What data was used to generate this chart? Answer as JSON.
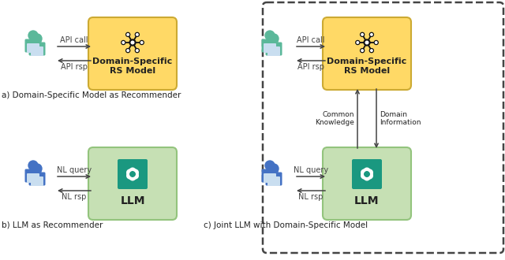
{
  "fig_width": 6.4,
  "fig_height": 3.3,
  "dpi": 100,
  "background": "#ffffff",
  "yellow_box_color": "#FFD966",
  "yellow_box_edge": "#CCAA33",
  "green_box_color": "#C6E0B4",
  "green_box_edge": "#93C47D",
  "dashed_box_edge": "#444444",
  "person_green_color": "#5BB89A",
  "person_blue_color": "#4472C4",
  "person_shirt_color": "#C9DEF0",
  "arrow_color": "#444444",
  "text_color": "#222222",
  "label_color": "#222222",
  "label_a": "a) Domain-Specific Model as Recommender",
  "label_b": "b) LLM as Recommender",
  "label_c": "c) Joint LLM with Domain-Specific Model",
  "box_a_text": "Domain-Specific\nRS Model",
  "box_b_text": "LLM",
  "box_c_ds_text": "Domain-Specific\nRS Model",
  "box_c_llm_text": "LLM",
  "arrow_a_top": "API call",
  "arrow_a_bot": "API rsp",
  "arrow_b_top": "NL query",
  "arrow_b_bot": "NL rsp",
  "arrow_c_top": "API call",
  "arrow_c_bot": "API rsp",
  "arrow_c_b_top": "NL query",
  "arrow_c_b_bot": "NL rsp",
  "common_knowledge": "Common\nKnowledge",
  "domain_information": "Domain\nInformation",
  "openai_color": "#1A9880",
  "network_color": "#111111"
}
